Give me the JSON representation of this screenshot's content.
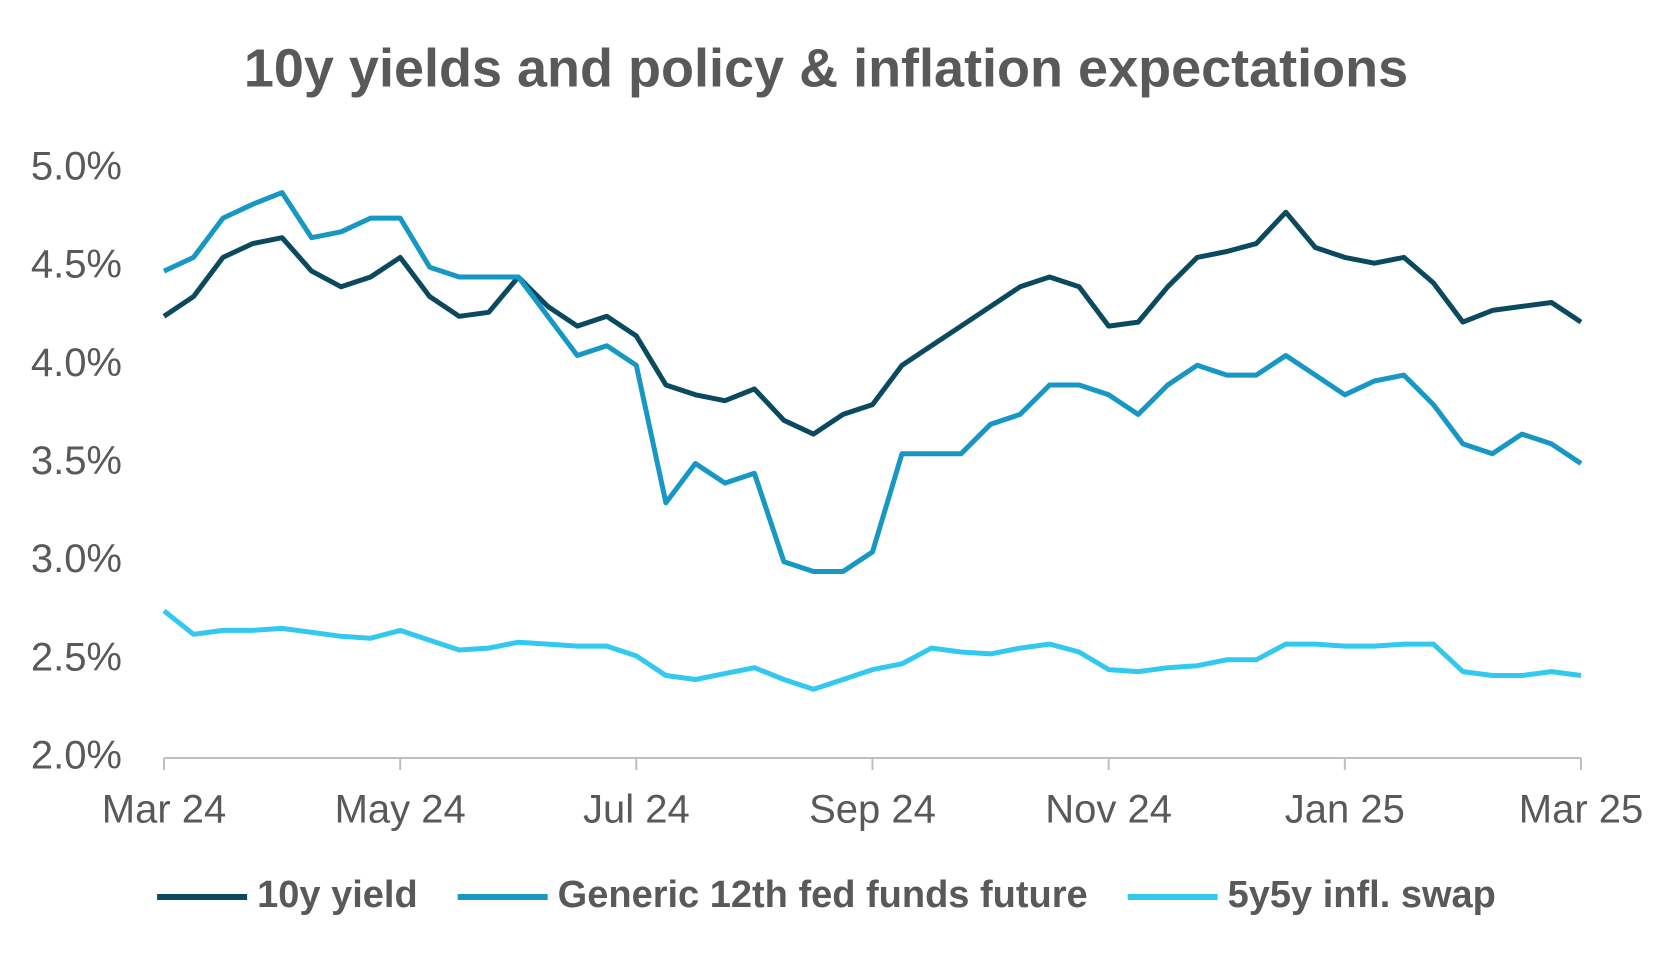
{
  "chart_data": {
    "type": "line",
    "title": "10y yields and policy & inflation expectations",
    "categories": [
      "Mar 24",
      null,
      null,
      null,
      null,
      null,
      null,
      null,
      "May 24",
      null,
      null,
      null,
      null,
      null,
      null,
      null,
      "Jul 24",
      null,
      null,
      null,
      null,
      null,
      null,
      null,
      "Sep 24",
      null,
      null,
      null,
      null,
      null,
      null,
      null,
      "Nov 24",
      null,
      null,
      null,
      null,
      null,
      null,
      null,
      "Jan 25",
      null,
      null,
      null,
      null,
      null,
      null,
      null,
      "Mar 25"
    ],
    "series": [
      {
        "name": "10y yield",
        "color": "#0b4a5e",
        "values": [
          4.25,
          4.35,
          4.55,
          4.62,
          4.65,
          4.48,
          4.4,
          4.45,
          4.55,
          4.35,
          4.25,
          4.27,
          4.45,
          4.3,
          4.2,
          4.25,
          4.15,
          3.9,
          3.85,
          3.82,
          3.88,
          3.72,
          3.65,
          3.75,
          3.8,
          4.0,
          4.1,
          4.2,
          4.3,
          4.4,
          4.45,
          4.4,
          4.2,
          4.22,
          4.4,
          4.55,
          4.58,
          4.62,
          4.78,
          4.6,
          4.55,
          4.52,
          4.55,
          4.42,
          4.22,
          4.28,
          4.3,
          4.32,
          4.22
        ]
      },
      {
        "name": "Generic 12th fed funds future",
        "color": "#1797c4",
        "values": [
          4.48,
          4.55,
          4.75,
          4.82,
          4.88,
          4.65,
          4.68,
          4.75,
          4.75,
          4.5,
          4.45,
          4.45,
          4.45,
          4.25,
          4.05,
          4.1,
          4.0,
          3.3,
          3.5,
          3.4,
          3.45,
          3.0,
          2.95,
          2.95,
          3.05,
          3.55,
          3.55,
          3.55,
          3.7,
          3.75,
          3.9,
          3.9,
          3.85,
          3.75,
          3.9,
          4.0,
          3.95,
          3.95,
          4.05,
          3.95,
          3.85,
          3.92,
          3.95,
          3.8,
          3.6,
          3.55,
          3.65,
          3.6,
          3.5
        ]
      },
      {
        "name": "5y5y infl. swap",
        "color": "#33c8f0",
        "values": [
          2.75,
          2.63,
          2.65,
          2.65,
          2.66,
          2.64,
          2.62,
          2.61,
          2.65,
          2.6,
          2.55,
          2.56,
          2.59,
          2.58,
          2.57,
          2.57,
          2.52,
          2.42,
          2.4,
          2.43,
          2.46,
          2.4,
          2.35,
          2.4,
          2.45,
          2.48,
          2.56,
          2.54,
          2.53,
          2.56,
          2.58,
          2.54,
          2.45,
          2.44,
          2.46,
          2.47,
          2.5,
          2.5,
          2.58,
          2.58,
          2.57,
          2.57,
          2.58,
          2.58,
          2.44,
          2.42,
          2.42,
          2.44,
          2.42
        ]
      }
    ],
    "ylim": [
      2,
      5
    ],
    "yticks": [
      {
        "value": 2,
        "label": "2.0%"
      },
      {
        "value": 2.5,
        "label": "2.5%"
      },
      {
        "value": 3,
        "label": "3.0%"
      },
      {
        "value": 3.5,
        "label": "3.5%"
      },
      {
        "value": 4,
        "label": "4.0%"
      },
      {
        "value": 4.5,
        "label": "4.5%"
      },
      {
        "value": 5,
        "label": "5.0%"
      }
    ],
    "grid": false,
    "legend": "bottom"
  }
}
